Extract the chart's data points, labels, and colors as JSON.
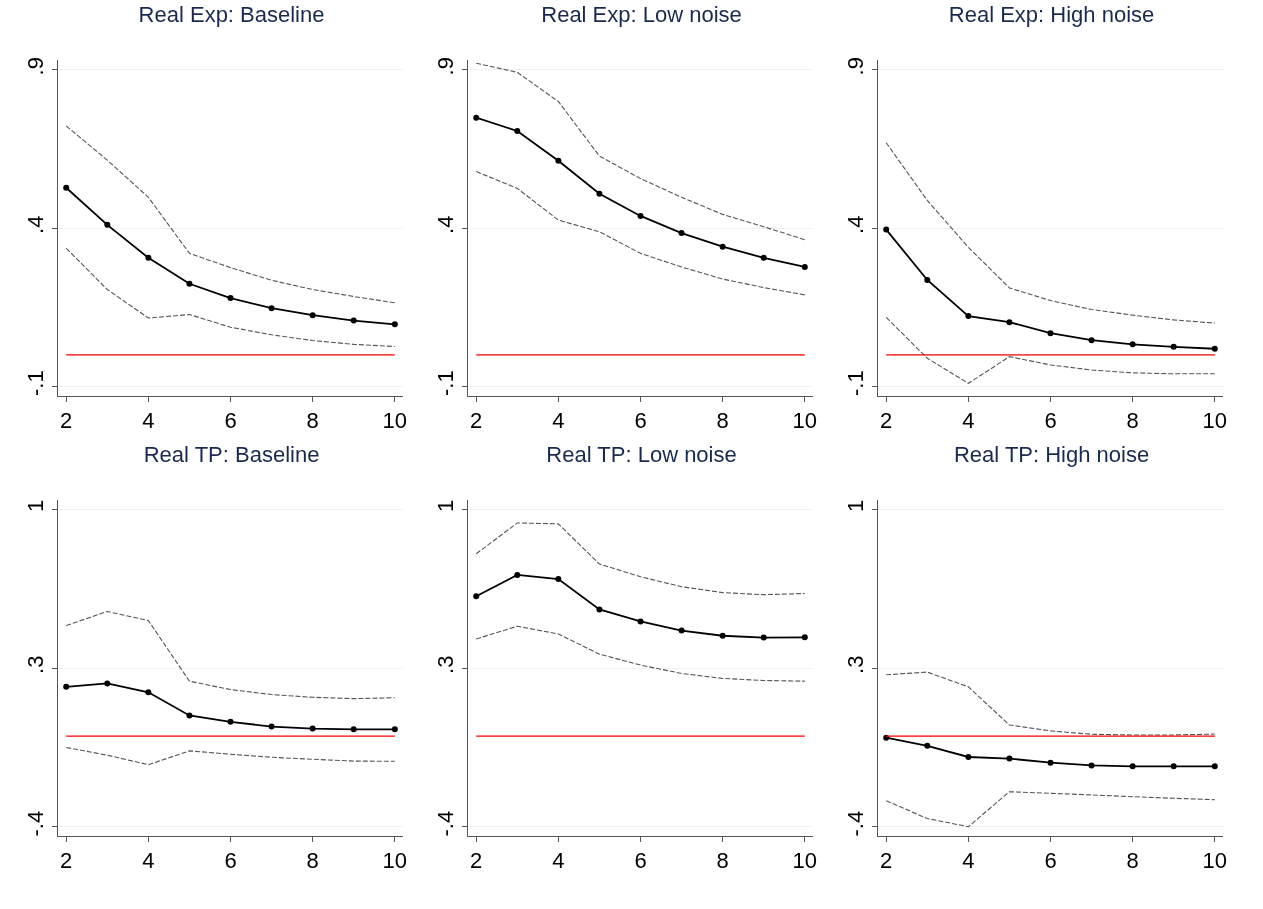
{
  "chart_data": [
    {
      "type": "line",
      "title": "Real Exp: Baseline",
      "x": [
        2,
        3,
        4,
        5,
        6,
        7,
        8,
        9,
        10
      ],
      "xlim": [
        1.8,
        10.2
      ],
      "xticks": [
        2,
        4,
        6,
        8,
        10
      ],
      "ylim": [
        -0.13,
        0.93
      ],
      "yticks": [
        {
          "value": -0.1,
          "label": "-.1"
        },
        {
          "value": 0.4,
          "label": ".4"
        },
        {
          "value": 0.9,
          "label": ".9"
        }
      ],
      "grid": "y",
      "series": [
        {
          "color": "#000000",
          "marker": "circle",
          "line_style": "solid",
          "values": [
            0.527,
            0.41,
            0.306,
            0.224,
            0.179,
            0.147,
            0.125,
            0.108,
            0.096
          ]
        },
        {
          "color": "#555555",
          "marker": "none",
          "line_style": "dashed",
          "values": [
            0.722,
            0.614,
            0.497,
            0.32,
            0.275,
            0.235,
            0.206,
            0.184,
            0.164
          ]
        },
        {
          "color": "#555555",
          "marker": "none",
          "line_style": "dashed",
          "values": [
            0.336,
            0.206,
            0.116,
            0.127,
            0.087,
            0.063,
            0.045,
            0.033,
            0.026
          ]
        }
      ],
      "ref_lines": [
        {
          "axis": "y",
          "value": 0,
          "color": "#ff0000"
        }
      ]
    },
    {
      "type": "line",
      "title": "Real Exp: Low noise",
      "x": [
        2,
        3,
        4,
        5,
        6,
        7,
        8,
        9,
        10
      ],
      "xlim": [
        1.8,
        10.2
      ],
      "xticks": [
        2,
        4,
        6,
        8,
        10
      ],
      "ylim": [
        -0.13,
        0.93
      ],
      "yticks": [
        {
          "value": -0.1,
          "label": "-.1"
        },
        {
          "value": 0.4,
          "label": ".4"
        },
        {
          "value": 0.9,
          "label": ".9"
        }
      ],
      "grid": "y",
      "series": [
        {
          "color": "#000000",
          "marker": "circle",
          "line_style": "solid",
          "values": [
            0.748,
            0.706,
            0.612,
            0.508,
            0.438,
            0.384,
            0.341,
            0.306,
            0.277
          ]
        },
        {
          "color": "#555555",
          "marker": "none",
          "line_style": "dashed",
          "values": [
            0.92,
            0.891,
            0.799,
            0.627,
            0.556,
            0.497,
            0.443,
            0.404,
            0.363
          ]
        },
        {
          "color": "#555555",
          "marker": "none",
          "line_style": "dashed",
          "values": [
            0.578,
            0.525,
            0.425,
            0.388,
            0.32,
            0.277,
            0.239,
            0.212,
            0.189
          ]
        }
      ],
      "ref_lines": [
        {
          "axis": "y",
          "value": 0,
          "color": "#ff0000"
        }
      ]
    },
    {
      "type": "line",
      "title": "Real Exp: High noise",
      "x": [
        2,
        3,
        4,
        5,
        6,
        7,
        8,
        9,
        10
      ],
      "xlim": [
        1.8,
        10.2
      ],
      "xticks": [
        2,
        4,
        6,
        8,
        10
      ],
      "ylim": [
        -0.13,
        0.93
      ],
      "yticks": [
        {
          "value": -0.1,
          "label": "-.1"
        },
        {
          "value": 0.4,
          "label": ".4"
        },
        {
          "value": 0.9,
          "label": ".9"
        }
      ],
      "grid": "y",
      "series": [
        {
          "color": "#000000",
          "marker": "circle",
          "line_style": "solid",
          "values": [
            0.395,
            0.236,
            0.122,
            0.103,
            0.068,
            0.046,
            0.033,
            0.025,
            0.019
          ]
        },
        {
          "color": "#555555",
          "marker": "none",
          "line_style": "dashed",
          "values": [
            0.669,
            0.487,
            0.339,
            0.211,
            0.171,
            0.143,
            0.125,
            0.11,
            0.1
          ]
        },
        {
          "color": "#555555",
          "marker": "none",
          "line_style": "dashed",
          "values": [
            0.118,
            -0.011,
            -0.09,
            -0.006,
            -0.032,
            -0.048,
            -0.057,
            -0.06,
            -0.06
          ]
        }
      ],
      "ref_lines": [
        {
          "axis": "y",
          "value": 0,
          "color": "#ff0000"
        }
      ]
    },
    {
      "type": "line",
      "title": "Real TP: Baseline",
      "x": [
        2,
        3,
        4,
        5,
        6,
        7,
        8,
        9,
        10
      ],
      "xlim": [
        1.8,
        10.2
      ],
      "xticks": [
        2,
        4,
        6,
        8,
        10
      ],
      "ylim": [
        -0.44,
        1.04
      ],
      "yticks": [
        {
          "value": -0.4,
          "label": "-.4"
        },
        {
          "value": 0.3,
          "label": ".3"
        },
        {
          "value": 1,
          "label": "1"
        }
      ],
      "grid": "y",
      "series": [
        {
          "color": "#000000",
          "marker": "circle",
          "line_style": "solid",
          "values": [
            0.217,
            0.232,
            0.193,
            0.091,
            0.063,
            0.042,
            0.033,
            0.03,
            0.03
          ]
        },
        {
          "color": "#555555",
          "marker": "none",
          "line_style": "dashed",
          "values": [
            0.487,
            0.549,
            0.509,
            0.242,
            0.205,
            0.183,
            0.171,
            0.165,
            0.169
          ]
        },
        {
          "color": "#555555",
          "marker": "none",
          "line_style": "dashed",
          "values": [
            -0.05,
            -0.084,
            -0.126,
            -0.065,
            -0.08,
            -0.093,
            -0.102,
            -0.11,
            -0.111
          ]
        }
      ],
      "ref_lines": [
        {
          "axis": "y",
          "value": 0,
          "color": "#ff0000"
        }
      ]
    },
    {
      "type": "line",
      "title": "Real TP: Low noise",
      "x": [
        2,
        3,
        4,
        5,
        6,
        7,
        8,
        9,
        10
      ],
      "xlim": [
        1.8,
        10.2
      ],
      "xticks": [
        2,
        4,
        6,
        8,
        10
      ],
      "ylim": [
        -0.44,
        1.04
      ],
      "yticks": [
        {
          "value": -0.4,
          "label": "-.4"
        },
        {
          "value": 0.3,
          "label": ".3"
        },
        {
          "value": 1,
          "label": "1"
        }
      ],
      "grid": "y",
      "series": [
        {
          "color": "#000000",
          "marker": "circle",
          "line_style": "solid",
          "values": [
            0.616,
            0.71,
            0.692,
            0.558,
            0.505,
            0.465,
            0.442,
            0.434,
            0.435
          ]
        },
        {
          "color": "#555555",
          "marker": "none",
          "line_style": "dashed",
          "values": [
            0.803,
            0.939,
            0.935,
            0.758,
            0.702,
            0.658,
            0.632,
            0.623,
            0.628
          ]
        },
        {
          "color": "#555555",
          "marker": "none",
          "line_style": "dashed",
          "values": [
            0.428,
            0.484,
            0.45,
            0.361,
            0.313,
            0.276,
            0.254,
            0.245,
            0.242
          ]
        }
      ],
      "ref_lines": [
        {
          "axis": "y",
          "value": 0,
          "color": "#ff0000"
        }
      ]
    },
    {
      "type": "line",
      "title": "Real TP: High noise",
      "x": [
        2,
        3,
        4,
        5,
        6,
        7,
        8,
        9,
        10
      ],
      "xlim": [
        1.8,
        10.2
      ],
      "xticks": [
        2,
        4,
        6,
        8,
        10
      ],
      "ylim": [
        -0.44,
        1.04
      ],
      "yticks": [
        {
          "value": -0.4,
          "label": "-.4"
        },
        {
          "value": 0.3,
          "label": ".3"
        },
        {
          "value": 1,
          "label": "1"
        }
      ],
      "grid": "y",
      "series": [
        {
          "color": "#000000",
          "marker": "circle",
          "line_style": "solid",
          "values": [
            -0.007,
            -0.043,
            -0.092,
            -0.099,
            -0.117,
            -0.129,
            -0.133,
            -0.133,
            -0.133
          ]
        },
        {
          "color": "#555555",
          "marker": "none",
          "line_style": "dashed",
          "values": [
            0.27,
            0.282,
            0.217,
            0.049,
            0.023,
            0.008,
            0.005,
            0.005,
            0.009
          ]
        },
        {
          "color": "#555555",
          "marker": "none",
          "line_style": "dashed",
          "values": [
            -0.285,
            -0.363,
            -0.399,
            -0.245,
            -0.252,
            -0.259,
            -0.267,
            -0.274,
            -0.28
          ]
        }
      ],
      "ref_lines": [
        {
          "axis": "y",
          "value": 0,
          "color": "#ff0000"
        }
      ]
    }
  ]
}
